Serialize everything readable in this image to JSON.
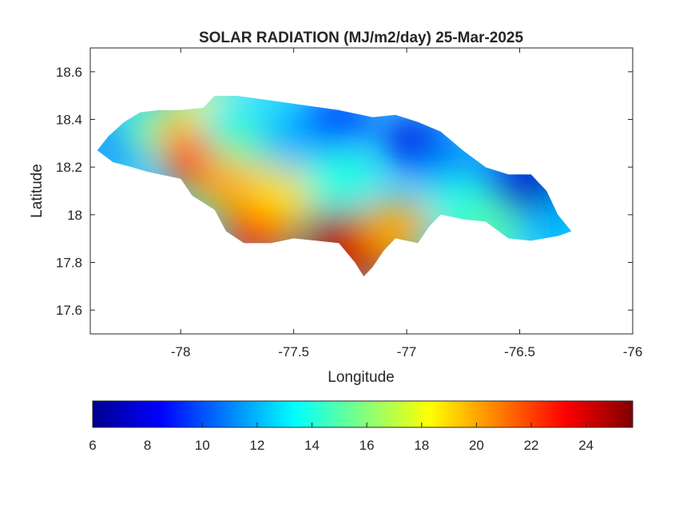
{
  "chart_data": {
    "type": "heatmap",
    "title": "SOLAR RADIATION (MJ/m2/day) 25-Mar-2025",
    "xlabel": "Longitude",
    "ylabel": "Latitude",
    "xlim": [
      -78.4,
      -76
    ],
    "ylim": [
      17.5,
      18.7
    ],
    "xticks": [
      "-78",
      "-77.5",
      "-77",
      "-76.5",
      "-76"
    ],
    "xtick_values": [
      -78,
      -77.5,
      -77,
      -76.5,
      -76
    ],
    "yticks": [
      "17.6",
      "17.8",
      "18",
      "18.2",
      "18.4",
      "18.6"
    ],
    "ytick_values": [
      17.6,
      17.8,
      18,
      18.2,
      18.4,
      18.6
    ],
    "grid": false,
    "colormap": "jet",
    "colorbar": {
      "position": "bottom",
      "range": [
        6,
        25.7
      ],
      "ticks": [
        "6",
        "8",
        "10",
        "12",
        "14",
        "16",
        "18",
        "20",
        "22",
        "24"
      ],
      "tick_values": [
        6,
        8,
        10,
        12,
        14,
        16,
        18,
        20,
        22,
        24
      ]
    },
    "regions": [
      {
        "lon": -78.25,
        "lat": 18.3,
        "value": 11
      },
      {
        "lon": -78.1,
        "lat": 18.35,
        "value": 15
      },
      {
        "lon": -77.95,
        "lat": 18.35,
        "value": 20
      },
      {
        "lon": -77.92,
        "lat": 18.22,
        "value": 22
      },
      {
        "lon": -77.85,
        "lat": 18.45,
        "value": 18
      },
      {
        "lon": -77.75,
        "lat": 18.4,
        "value": 13
      },
      {
        "lon": -77.7,
        "lat": 18.28,
        "value": 15
      },
      {
        "lon": -77.78,
        "lat": 18.12,
        "value": 20
      },
      {
        "lon": -77.65,
        "lat": 17.93,
        "value": 23
      },
      {
        "lon": -77.55,
        "lat": 18.08,
        "value": 19
      },
      {
        "lon": -77.5,
        "lat": 18.32,
        "value": 12
      },
      {
        "lon": -77.3,
        "lat": 18.4,
        "value": 10
      },
      {
        "lon": -77.3,
        "lat": 18.15,
        "value": 14
      },
      {
        "lon": -77.3,
        "lat": 17.9,
        "value": 25
      },
      {
        "lon": -77.2,
        "lat": 17.82,
        "value": 24
      },
      {
        "lon": -77.05,
        "lat": 17.95,
        "value": 20
      },
      {
        "lon": -76.95,
        "lat": 18.3,
        "value": 8
      },
      {
        "lon": -76.8,
        "lat": 18.2,
        "value": 11
      },
      {
        "lon": -76.75,
        "lat": 18.05,
        "value": 14
      },
      {
        "lon": -76.6,
        "lat": 17.95,
        "value": 15
      },
      {
        "lon": -76.5,
        "lat": 18.15,
        "value": 8
      },
      {
        "lon": -76.4,
        "lat": 18.07,
        "value": 7
      },
      {
        "lon": -76.35,
        "lat": 17.95,
        "value": 12
      }
    ]
  }
}
